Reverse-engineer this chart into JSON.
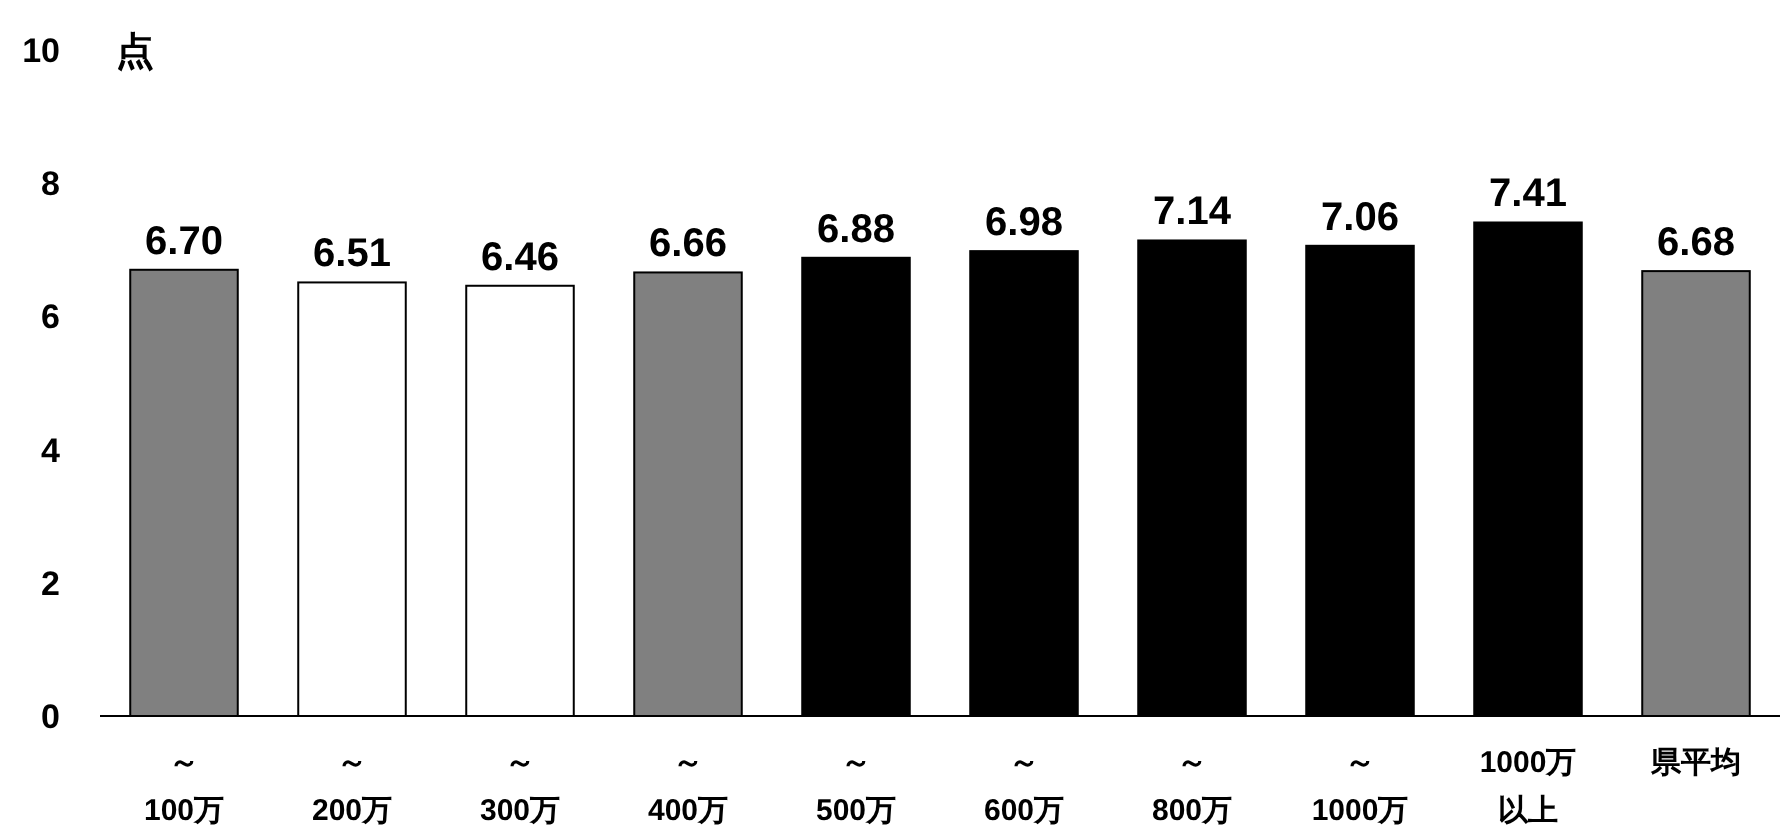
{
  "chart_data": {
    "type": "bar",
    "ylabel": "点",
    "categories": [
      "～100万",
      "～200万",
      "～300万",
      "～400万",
      "～500万",
      "～600万",
      "～800万",
      "～1000万",
      "1000万以上",
      "県平均"
    ],
    "values": [
      6.7,
      6.51,
      6.46,
      6.66,
      6.88,
      6.98,
      7.14,
      7.06,
      7.41,
      6.68
    ],
    "value_labels": [
      "6.70",
      "6.51",
      "6.46",
      "6.66",
      "6.88",
      "6.98",
      "7.14",
      "7.06",
      "7.41",
      "6.68"
    ],
    "colors": [
      "#808080",
      "#ffffff",
      "#ffffff",
      "#808080",
      "#000000",
      "#000000",
      "#000000",
      "#000000",
      "#000000",
      "#808080"
    ],
    "ylim": [
      0,
      10
    ],
    "yticks": [
      0,
      2,
      4,
      6,
      8,
      10
    ],
    "grid": false
  }
}
